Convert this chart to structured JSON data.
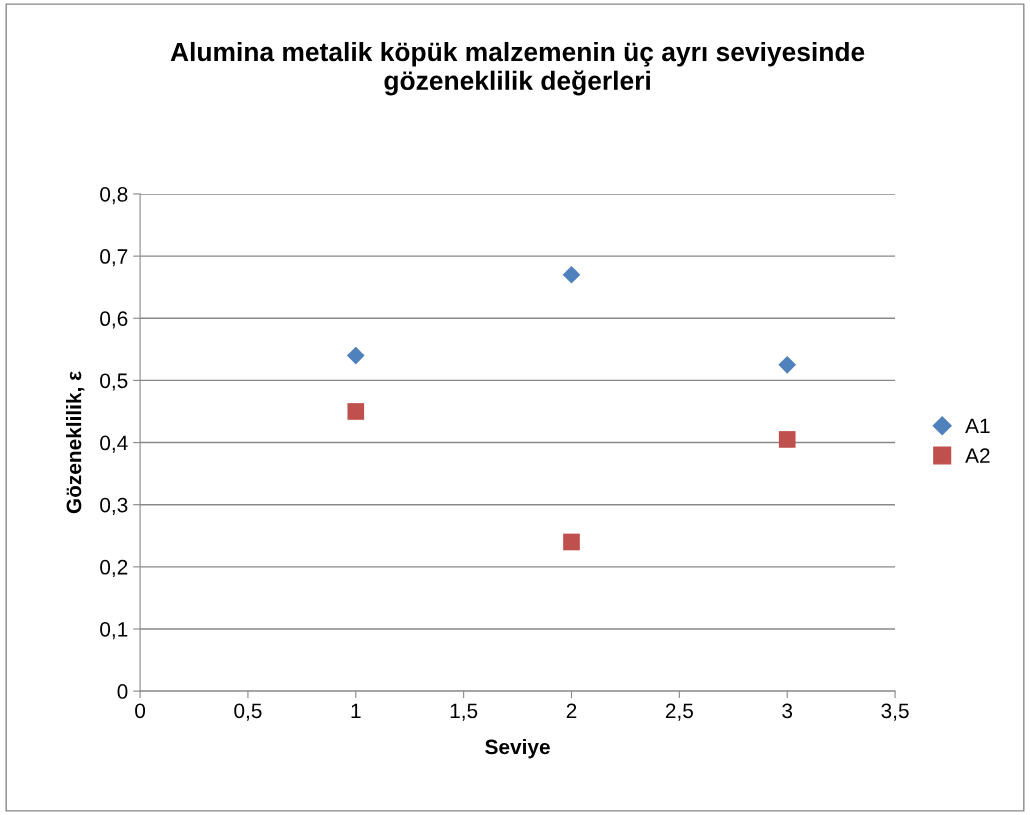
{
  "chart_data": {
    "type": "scatter",
    "title": "Alumina metalik köpük malzemenin üç ayrı seviyesinde\ngözeneklilik değerleri",
    "xlabel": "Seviye",
    "ylabel": "Gözeneklilik, ε",
    "x": [
      1,
      2,
      3
    ],
    "series": [
      {
        "name": "A1",
        "color": "#4f81bd",
        "marker": "diamond",
        "values": [
          0.54,
          0.67,
          0.525
        ]
      },
      {
        "name": "A2",
        "color": "#c0504d",
        "marker": "square",
        "values": [
          0.45,
          0.24,
          0.405
        ]
      }
    ],
    "xlim": [
      0,
      3.5
    ],
    "ylim": [
      0,
      0.8
    ],
    "xticks": [
      0,
      {
        "value": 0.5,
        "label": "0,5"
      },
      1,
      {
        "value": 1.5,
        "label": "1,5"
      },
      2,
      {
        "value": 2.5,
        "label": "2,5"
      },
      3,
      {
        "value": 3.5,
        "label": "3,5"
      }
    ],
    "yticks": [
      0,
      {
        "value": 0.1,
        "label": "0,1"
      },
      {
        "value": 0.2,
        "label": "0,2"
      },
      {
        "value": 0.3,
        "label": "0,3"
      },
      {
        "value": 0.4,
        "label": "0,4"
      },
      {
        "value": 0.5,
        "label": "0,5"
      },
      {
        "value": 0.6,
        "label": "0,6"
      },
      {
        "value": 0.7,
        "label": "0,7"
      },
      {
        "value": 0.8,
        "label": "0,8"
      }
    ],
    "grid": "y",
    "legend": "right"
  }
}
